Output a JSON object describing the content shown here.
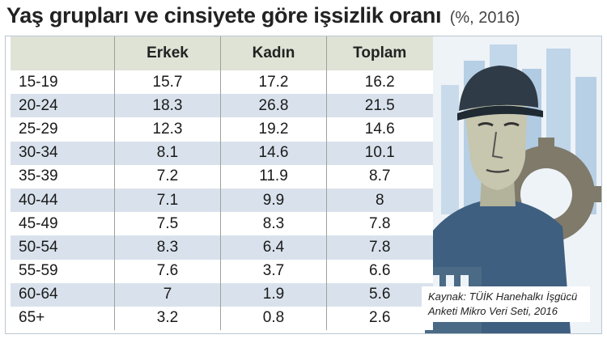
{
  "title": "Yaş grupları ve cinsiyete göre işsizlik oranı",
  "subtitle": "(%, 2016)",
  "table": {
    "headers": [
      "",
      "Erkek",
      "Kadın",
      "Toplam"
    ],
    "rows": [
      [
        "15-19",
        "15.7",
        "17.2",
        "16.2"
      ],
      [
        "20-24",
        "18.3",
        "26.8",
        "21.5"
      ],
      [
        "25-29",
        "12.3",
        "19.2",
        "14.6"
      ],
      [
        "30-34",
        "8.1",
        "14.6",
        "10.1"
      ],
      [
        "35-39",
        "7.2",
        "11.9",
        "8.7"
      ],
      [
        "40-44",
        "7.1",
        "9.9",
        "8"
      ],
      [
        "45-49",
        "7.5",
        "8.3",
        "7.8"
      ],
      [
        "50-54",
        "8.3",
        "6.4",
        "7.8"
      ],
      [
        "55-59",
        "7.6",
        "3.7",
        "6.6"
      ],
      [
        "60-64",
        "7",
        "1.9",
        "5.6"
      ],
      [
        "65+",
        "3.2",
        "0.8",
        "2.6"
      ]
    ]
  },
  "source": {
    "line1": "Kaynak: TÜİK Hanehalkı İşgücü",
    "line2": "Anketi Mikro Veri Seti, 2016"
  },
  "colors": {
    "header_bg": "#dfe3d6",
    "stripe_bg": "#d9e2ec",
    "illustration_bg": "#8fb6d6"
  }
}
